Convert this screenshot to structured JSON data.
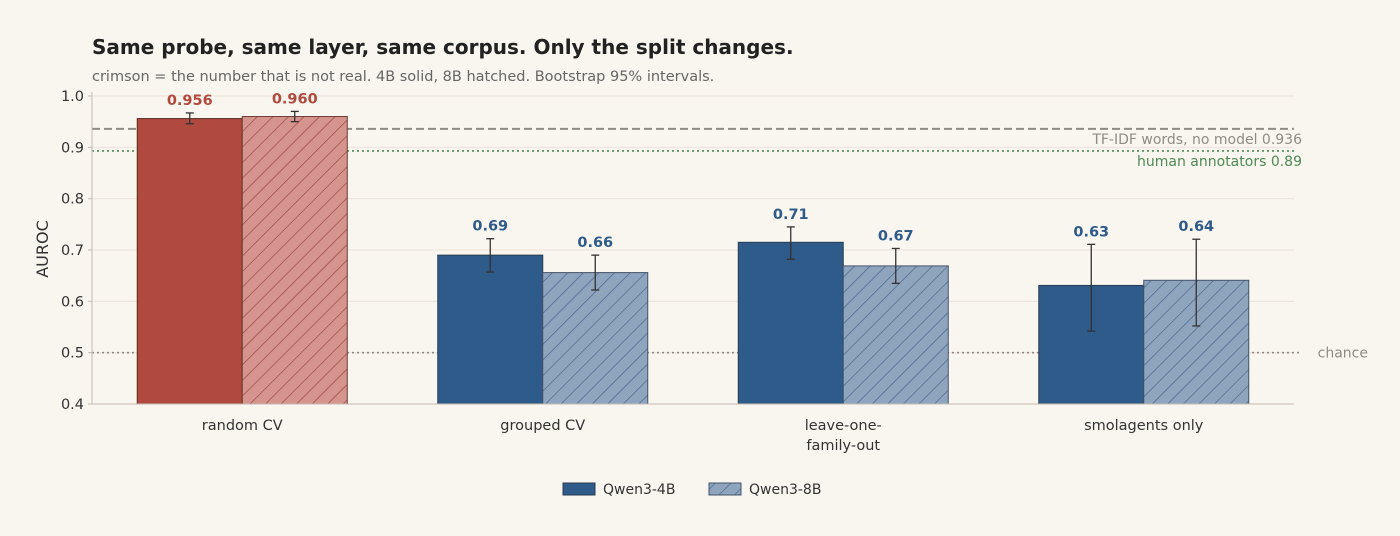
{
  "chart_data": {
    "type": "bar",
    "title": "Same probe, same layer, same corpus. Only the split changes.",
    "subtitle": "crimson = the number that is not real. 4B solid, 8B hatched. Bootstrap 95% intervals.",
    "ylabel": "AUROC",
    "ylim": [
      0.4,
      1.0
    ],
    "yticks": [
      "0.4",
      "0.5",
      "0.6",
      "0.7",
      "0.8",
      "0.9",
      "1.0"
    ],
    "ytick_values": [
      0.4,
      0.5,
      0.6,
      0.7,
      0.8,
      0.9,
      1.0
    ],
    "grid": "horizontal",
    "categories": [
      [
        "random CV"
      ],
      [
        "grouped CV"
      ],
      [
        "leave-one-",
        "family-out"
      ],
      [
        "smolagents only"
      ]
    ],
    "series": [
      {
        "name": "Qwen3-4B",
        "style": "solid",
        "values": [
          0.956,
          0.69,
          0.715,
          0.631
        ],
        "labels": [
          "0.956",
          "0.69",
          "0.71",
          "0.63"
        ],
        "ci_low": [
          0.946,
          0.657,
          0.682,
          0.542
        ],
        "ci_high": [
          0.967,
          0.722,
          0.745,
          0.711
        ]
      },
      {
        "name": "Qwen3-8B",
        "style": "hatched",
        "values": [
          0.96,
          0.656,
          0.669,
          0.641
        ],
        "labels": [
          "0.960",
          "0.66",
          "0.67",
          "0.64"
        ],
        "ci_low": [
          0.95,
          0.622,
          0.635,
          0.552
        ],
        "ci_high": [
          0.97,
          0.69,
          0.703,
          0.721
        ]
      }
    ],
    "highlight_category_index": 0,
    "reference_lines": [
      {
        "value": 0.936,
        "label": "TF-IDF words, no model  0.936",
        "style": "dashed",
        "color": "#8f8b86"
      },
      {
        "value": 0.893,
        "label": "human annotators  0.89",
        "style": "dotted",
        "color": "#4e8a55"
      },
      {
        "value": 0.5,
        "label": "chance",
        "style": "dotted",
        "color": "#8f8b86"
      }
    ],
    "legend": {
      "position": "bottom-center",
      "entries": [
        "Qwen3-4B",
        "Qwen3-8B"
      ]
    },
    "colors": {
      "blue": "#2e5b8a",
      "blue_light": "#8fa4bd",
      "crimson": "#b0493e",
      "crimson_light": "#d5948d",
      "blue_label": "#2e5b8a",
      "crimson_label": "#b0493e",
      "grid": "#ece4da",
      "axis": "#c4bcb2"
    }
  }
}
